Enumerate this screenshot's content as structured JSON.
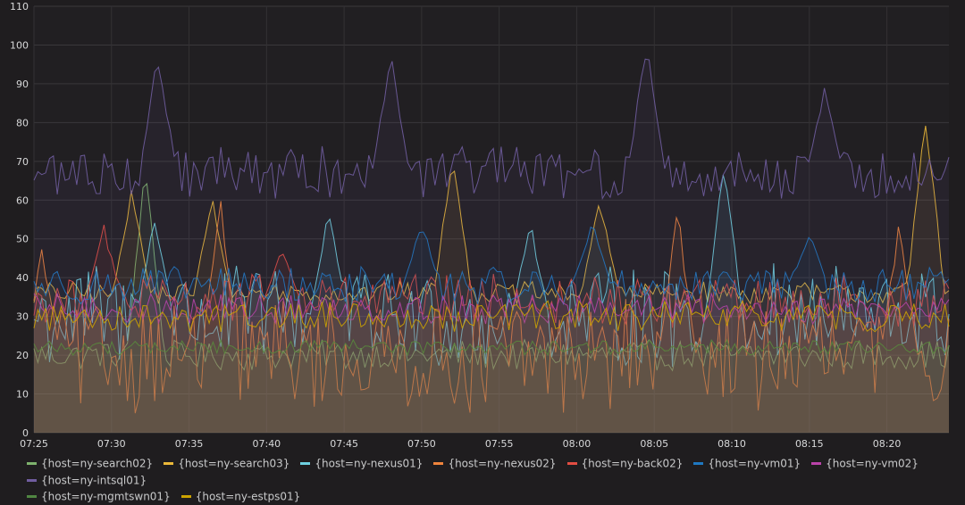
{
  "chart_data": {
    "type": "area",
    "title": "",
    "xlabel": "",
    "ylabel": "",
    "ylim": [
      0,
      110
    ],
    "y_ticks": [
      0,
      10,
      20,
      30,
      40,
      50,
      60,
      70,
      80,
      90,
      100,
      110
    ],
    "x_range": [
      "07:25",
      "08:24"
    ],
    "x_tick_labels": [
      "07:25",
      "07:30",
      "07:35",
      "07:40",
      "07:45",
      "07:50",
      "07:55",
      "08:00",
      "08:05",
      "08:10",
      "08:15",
      "08:20"
    ],
    "grid": true,
    "legend_position": "bottom",
    "series": [
      {
        "name": "{host=ny-search02}",
        "color": "#7eb26d",
        "base": 20,
        "noise": 4,
        "spikes": [
          [
            7.2,
            73
          ]
        ]
      },
      {
        "name": "{host=ny-search03}",
        "color": "#eab839",
        "base": 36,
        "noise": 3,
        "spikes": [
          [
            6.3,
            65
          ],
          [
            11.5,
            62
          ],
          [
            27,
            76
          ],
          [
            36.5,
            62
          ],
          [
            57.5,
            87
          ]
        ]
      },
      {
        "name": "{host=ny-nexus01}",
        "color": "#6ed0e0",
        "base": 30,
        "noise": 14,
        "spikes": [
          [
            7.8,
            57
          ],
          [
            19,
            60
          ],
          [
            32,
            56
          ],
          [
            44.5,
            72
          ]
        ]
      },
      {
        "name": "{host=ny-nexus02}",
        "color": "#ef843c",
        "base": 20,
        "noise": 15,
        "spikes": [
          [
            0.5,
            48
          ],
          [
            12,
            62
          ],
          [
            41.5,
            59
          ],
          [
            55.8,
            57
          ]
        ]
      },
      {
        "name": "{host=ny-back02}",
        "color": "#e24d42",
        "base": 34,
        "noise": 7,
        "spikes": [
          [
            4.5,
            54
          ],
          [
            16,
            48
          ]
        ]
      },
      {
        "name": "{host=ny-vm01}",
        "color": "#1f78c1",
        "base": 38,
        "noise": 5,
        "spikes": [
          [
            25,
            55
          ],
          [
            36,
            56
          ],
          [
            50,
            52
          ]
        ]
      },
      {
        "name": "{host=ny-vm02}",
        "color": "#ba43a9",
        "base": 32,
        "noise": 4,
        "spikes": []
      },
      {
        "name": "{host=ny-intsql01}",
        "color": "#705da0",
        "base": 67,
        "noise": 7,
        "spikes": [
          [
            8,
            99
          ],
          [
            23,
            100
          ],
          [
            39.5,
            103
          ],
          [
            51,
            90
          ]
        ]
      },
      {
        "name": "{host=ny-mgmtswn01}",
        "color": "#508642",
        "base": 22,
        "noise": 2,
        "spikes": []
      },
      {
        "name": "{host=ny-estps01}",
        "color": "#cca300",
        "base": 30,
        "noise": 4,
        "spikes": []
      }
    ]
  }
}
